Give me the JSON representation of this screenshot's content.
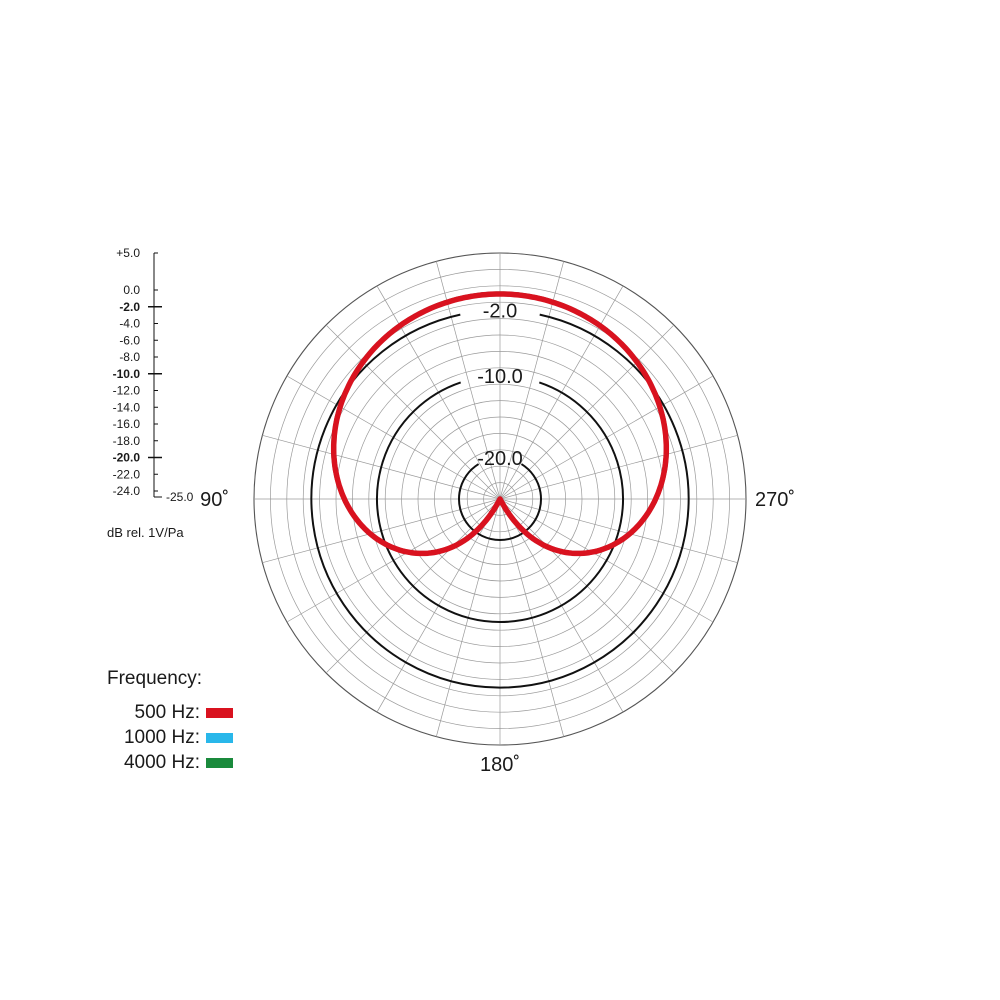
{
  "chart_data": {
    "type": "polar",
    "scale": {
      "tick_labels": [
        "+5.0",
        "0.0",
        "-2.0",
        "-4.0",
        "-6.0",
        "-8.0",
        "-10.0",
        "-12.0",
        "-14.0",
        "-16.0",
        "-18.0",
        "-20.0",
        "-22.0",
        "-24.0"
      ],
      "bold_labels": [
        "-2.0",
        "-10.0",
        "-20.0"
      ],
      "end_label": "-25.0",
      "unit_label": "dB rel. 1V/Pa",
      "range": [
        -25,
        5
      ]
    },
    "rings": [
      "-2.0",
      "-10.0",
      "-20.0"
    ],
    "angle_labels": {
      "left": "90˚",
      "right": "270˚",
      "bottom": "180˚"
    },
    "legend": {
      "title": "Frequency:",
      "entries": [
        {
          "label": "500 Hz:",
          "color": "#d9121f"
        },
        {
          "label": "1000 Hz:",
          "color": "#29b7ea"
        },
        {
          "label": "4000 Hz:",
          "color": "#1a8a3c"
        }
      ]
    },
    "series": [
      {
        "name": "4000 Hz",
        "color": "#1a8a3c",
        "pattern": "cardioid",
        "front_db": 0.0,
        "rear_db": -25.0
      },
      {
        "name": "1000 Hz",
        "color": "#29b7ea",
        "pattern": "cardioid",
        "front_db": 0.0,
        "rear_db": -25.0
      },
      {
        "name": "500 Hz",
        "color": "#d9121f",
        "pattern": "cardioid",
        "front_db": 0.0,
        "rear_db": -25.0
      }
    ]
  }
}
